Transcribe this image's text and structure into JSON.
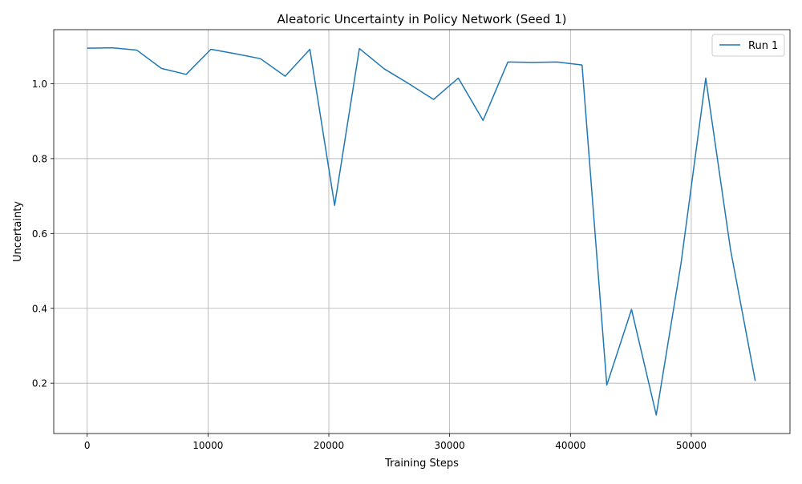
{
  "chart_data": {
    "type": "line",
    "title": "Aleatoric Uncertainty in Policy Network (Seed 1)",
    "xlabel": "Training Steps",
    "ylabel": "Uncertainty",
    "xlim": [
      -2770,
      58170
    ],
    "ylim": [
      0.0655,
      1.1445
    ],
    "xticks": [
      0,
      10000,
      20000,
      30000,
      40000,
      50000
    ],
    "yticks": [
      0.2,
      0.4,
      0.6,
      0.8,
      1.0
    ],
    "xtick_labels": [
      "0",
      "10000",
      "20000",
      "30000",
      "40000",
      "50000"
    ],
    "ytick_labels": [
      "0.2",
      "0.4",
      "0.6",
      "0.8",
      "1.0"
    ],
    "grid": true,
    "legend_position": "upper right",
    "series": [
      {
        "name": "Run 1",
        "color": "#1f77b4",
        "x": [
          0,
          2048,
          4096,
          6144,
          8192,
          10240,
          12288,
          14336,
          16384,
          18432,
          20480,
          22528,
          24576,
          26624,
          28672,
          30720,
          32768,
          34816,
          36864,
          38912,
          40960,
          43008,
          45056,
          47104,
          49152,
          51200,
          53248,
          55296
        ],
        "y": [
          1.095,
          1.096,
          1.09,
          1.041,
          1.025,
          1.092,
          1.08,
          1.067,
          1.02,
          1.092,
          0.675,
          1.094,
          1.04,
          1.0,
          0.958,
          1.015,
          0.902,
          1.058,
          1.057,
          1.058,
          1.05,
          0.195,
          0.397,
          0.115,
          0.52,
          1.015,
          0.557,
          0.206
        ]
      }
    ]
  }
}
